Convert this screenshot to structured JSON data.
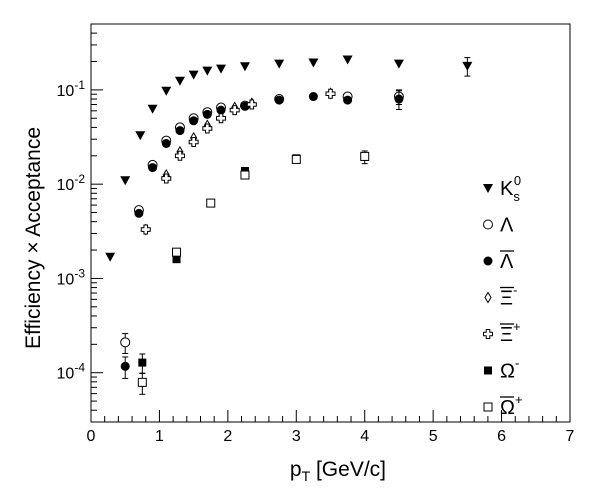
{
  "chart_data": {
    "type": "scatter",
    "title": "",
    "xlabel": "p",
    "xlabel_sub": "T",
    "xlabel_unit": "[GeV/c]",
    "ylabel": "Efficiency × Acceptance",
    "xlim": [
      0,
      7
    ],
    "ylim": [
      3e-05,
      0.5
    ],
    "yscale": "log",
    "grid": false,
    "legend_placement": "right",
    "x_ticks": [
      "0",
      "1",
      "2",
      "3",
      "4",
      "5",
      "6",
      "7"
    ],
    "y_ticks": [
      {
        "base": "10",
        "exp": "-4"
      },
      {
        "base": "10",
        "exp": "-3"
      },
      {
        "base": "10",
        "exp": "-2"
      },
      {
        "base": "10",
        "exp": "-1"
      }
    ],
    "series": [
      {
        "name": "K_s^0",
        "legend_base": "K",
        "legend_sub": "s",
        "legend_sup": "0",
        "legend_bar": false,
        "marker": "triangle-down-filled",
        "points": [
          {
            "x": 0.28,
            "y": 0.0017
          },
          {
            "x": 0.5,
            "y": 0.011
          },
          {
            "x": 0.72,
            "y": 0.033
          },
          {
            "x": 0.9,
            "y": 0.063
          },
          {
            "x": 1.1,
            "y": 0.098
          },
          {
            "x": 1.3,
            "y": 0.125
          },
          {
            "x": 1.5,
            "y": 0.145
          },
          {
            "x": 1.7,
            "y": 0.16
          },
          {
            "x": 1.9,
            "y": 0.168
          },
          {
            "x": 2.25,
            "y": 0.178
          },
          {
            "x": 2.75,
            "y": 0.19
          },
          {
            "x": 3.25,
            "y": 0.195
          },
          {
            "x": 3.75,
            "y": 0.21
          },
          {
            "x": 4.5,
            "y": 0.19
          },
          {
            "x": 5.5,
            "y": 0.18,
            "err": 0.04
          }
        ]
      },
      {
        "name": "Λ",
        "legend_base": "Λ",
        "legend_sub": "",
        "legend_sup": "",
        "legend_bar": false,
        "marker": "circle-open",
        "points": [
          {
            "x": 0.5,
            "y": 0.00021,
            "err": 5e-05
          },
          {
            "x": 0.7,
            "y": 0.0053
          },
          {
            "x": 0.9,
            "y": 0.016
          },
          {
            "x": 1.1,
            "y": 0.029
          },
          {
            "x": 1.3,
            "y": 0.04
          },
          {
            "x": 1.5,
            "y": 0.05
          },
          {
            "x": 1.7,
            "y": 0.058
          },
          {
            "x": 1.9,
            "y": 0.065
          },
          {
            "x": 2.25,
            "y": 0.068
          },
          {
            "x": 2.75,
            "y": 0.08
          },
          {
            "x": 3.75,
            "y": 0.085
          },
          {
            "x": 4.5,
            "y": 0.085,
            "err": 0.015
          }
        ]
      },
      {
        "name": "Λ̄",
        "legend_base": "Λ",
        "legend_sub": "",
        "legend_sup": "",
        "legend_bar": true,
        "marker": "circle-filled",
        "points": [
          {
            "x": 0.5,
            "y": 0.000117,
            "err": 3e-05
          },
          {
            "x": 0.7,
            "y": 0.0049
          },
          {
            "x": 0.9,
            "y": 0.015
          },
          {
            "x": 1.1,
            "y": 0.027
          },
          {
            "x": 1.3,
            "y": 0.037
          },
          {
            "x": 1.5,
            "y": 0.047
          },
          {
            "x": 1.7,
            "y": 0.055
          },
          {
            "x": 1.9,
            "y": 0.061
          },
          {
            "x": 2.25,
            "y": 0.067
          },
          {
            "x": 2.75,
            "y": 0.078
          },
          {
            "x": 3.25,
            "y": 0.085
          },
          {
            "x": 3.75,
            "y": 0.078
          },
          {
            "x": 4.5,
            "y": 0.08,
            "err": 0.018
          }
        ]
      },
      {
        "name": "Ξ̄^-",
        "legend_base": "Ξ",
        "legend_sub": "",
        "legend_sup": "-",
        "legend_bar": true,
        "marker": "diamond-open",
        "points": [
          {
            "x": 0.8,
            "y": 0.0033
          },
          {
            "x": 1.1,
            "y": 0.0125
          },
          {
            "x": 1.3,
            "y": 0.022
          },
          {
            "x": 1.5,
            "y": 0.031
          },
          {
            "x": 1.7,
            "y": 0.042
          },
          {
            "x": 1.9,
            "y": 0.051
          },
          {
            "x": 2.1,
            "y": 0.065
          },
          {
            "x": 2.35,
            "y": 0.072
          },
          {
            "x": 3.5,
            "y": 0.092
          }
        ]
      },
      {
        "name": "Ξ̄^+",
        "legend_base": "Ξ",
        "legend_sub": "",
        "legend_sup": "+",
        "legend_bar": true,
        "marker": "cross-open",
        "points": [
          {
            "x": 0.8,
            "y": 0.0033
          },
          {
            "x": 1.1,
            "y": 0.0115
          },
          {
            "x": 1.3,
            "y": 0.02
          },
          {
            "x": 1.5,
            "y": 0.028
          },
          {
            "x": 1.7,
            "y": 0.039
          },
          {
            "x": 1.9,
            "y": 0.05
          },
          {
            "x": 2.1,
            "y": 0.061
          },
          {
            "x": 2.35,
            "y": 0.07
          },
          {
            "x": 3.5,
            "y": 0.091
          }
        ]
      },
      {
        "name": "Ω^-",
        "legend_base": "Ω",
        "legend_sub": "",
        "legend_sup": "-",
        "legend_bar": false,
        "marker": "square-filled",
        "points": [
          {
            "x": 0.75,
            "y": 0.000128,
            "err": 3e-05
          },
          {
            "x": 1.25,
            "y": 0.0016
          },
          {
            "x": 1.75,
            "y": 0.0063
          },
          {
            "x": 2.25,
            "y": 0.0138
          },
          {
            "x": 3.0,
            "y": 0.0188
          },
          {
            "x": 4.0,
            "y": 0.0195,
            "err": 0.003
          }
        ]
      },
      {
        "name": "Ω̄^+",
        "legend_base": "Ω",
        "legend_sub": "",
        "legend_sup": "+",
        "legend_bar": true,
        "marker": "square-open",
        "points": [
          {
            "x": 0.75,
            "y": 7.9e-05,
            "err": 2e-05
          },
          {
            "x": 1.25,
            "y": 0.0019
          },
          {
            "x": 1.75,
            "y": 0.0063
          },
          {
            "x": 2.25,
            "y": 0.0125
          },
          {
            "x": 3.0,
            "y": 0.0183
          },
          {
            "x": 4.0,
            "y": 0.0197
          }
        ]
      }
    ]
  }
}
